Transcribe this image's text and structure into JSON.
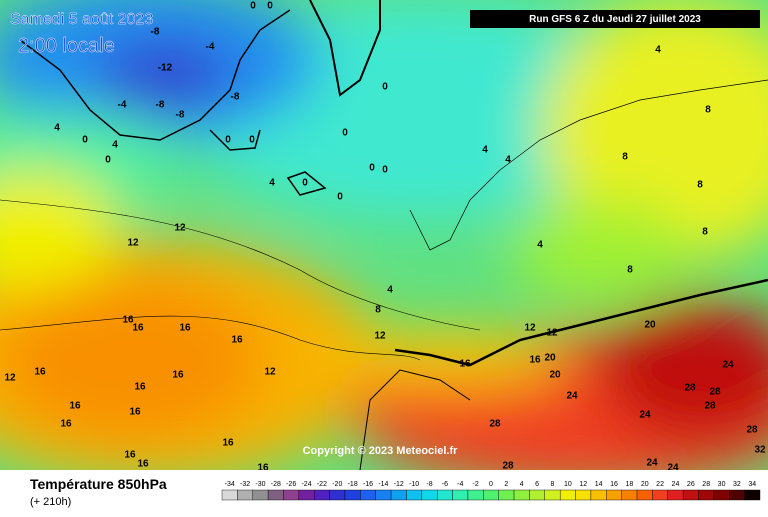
{
  "header": {
    "date": "Samedi 5 août 2023",
    "time": "2:00 locale",
    "run": "Run GFS 6 Z du Jeudi 27 juillet 2023"
  },
  "copyright": "Copyright © 2023 Meteociel.fr",
  "footer": {
    "title": "Température 850hPa",
    "lead": "(+ 210h)"
  },
  "scale": {
    "values": [
      -34,
      -32,
      -30,
      -28,
      -26,
      -24,
      -22,
      -20,
      -18,
      -16,
      -14,
      -12,
      -10,
      -8,
      -6,
      -4,
      -2,
      0,
      2,
      4,
      6,
      8,
      10,
      12,
      14,
      16,
      18,
      20,
      22,
      24,
      26,
      28,
      30,
      32,
      34
    ],
    "colors": [
      "#d8d8d8",
      "#b0b0b0",
      "#909090",
      "#806080",
      "#904090",
      "#7020a0",
      "#5020c0",
      "#3030d0",
      "#2040e0",
      "#2060f0",
      "#1880f0",
      "#10a0f0",
      "#10c0f0",
      "#10d8e8",
      "#20e8d0",
      "#30f0b0",
      "#40f090",
      "#50f070",
      "#70f050",
      "#90f040",
      "#b0f030",
      "#d0f020",
      "#f0f000",
      "#f8e000",
      "#f8c000",
      "#f8a000",
      "#f88000",
      "#f86000",
      "#f04020",
      "#e02020",
      "#c01010",
      "#a00808",
      "#800000",
      "#500000",
      "#100000"
    ]
  },
  "contour_labels": [
    -8,
    -4,
    -12,
    -8,
    -4,
    -8,
    -8,
    0,
    0,
    0,
    0,
    0,
    4,
    0,
    0,
    4,
    4,
    0,
    0,
    0,
    0,
    0,
    4,
    4,
    4,
    8,
    8,
    4,
    4,
    8,
    12,
    12,
    12,
    12,
    12,
    16,
    16,
    16,
    16,
    16,
    12,
    16,
    16,
    16,
    16,
    16,
    12,
    16,
    16,
    16,
    16,
    16,
    16,
    20,
    20,
    20,
    24,
    24,
    28,
    28,
    28,
    24,
    28,
    28,
    24,
    24,
    28,
    32,
    8,
    8,
    8
  ]
}
